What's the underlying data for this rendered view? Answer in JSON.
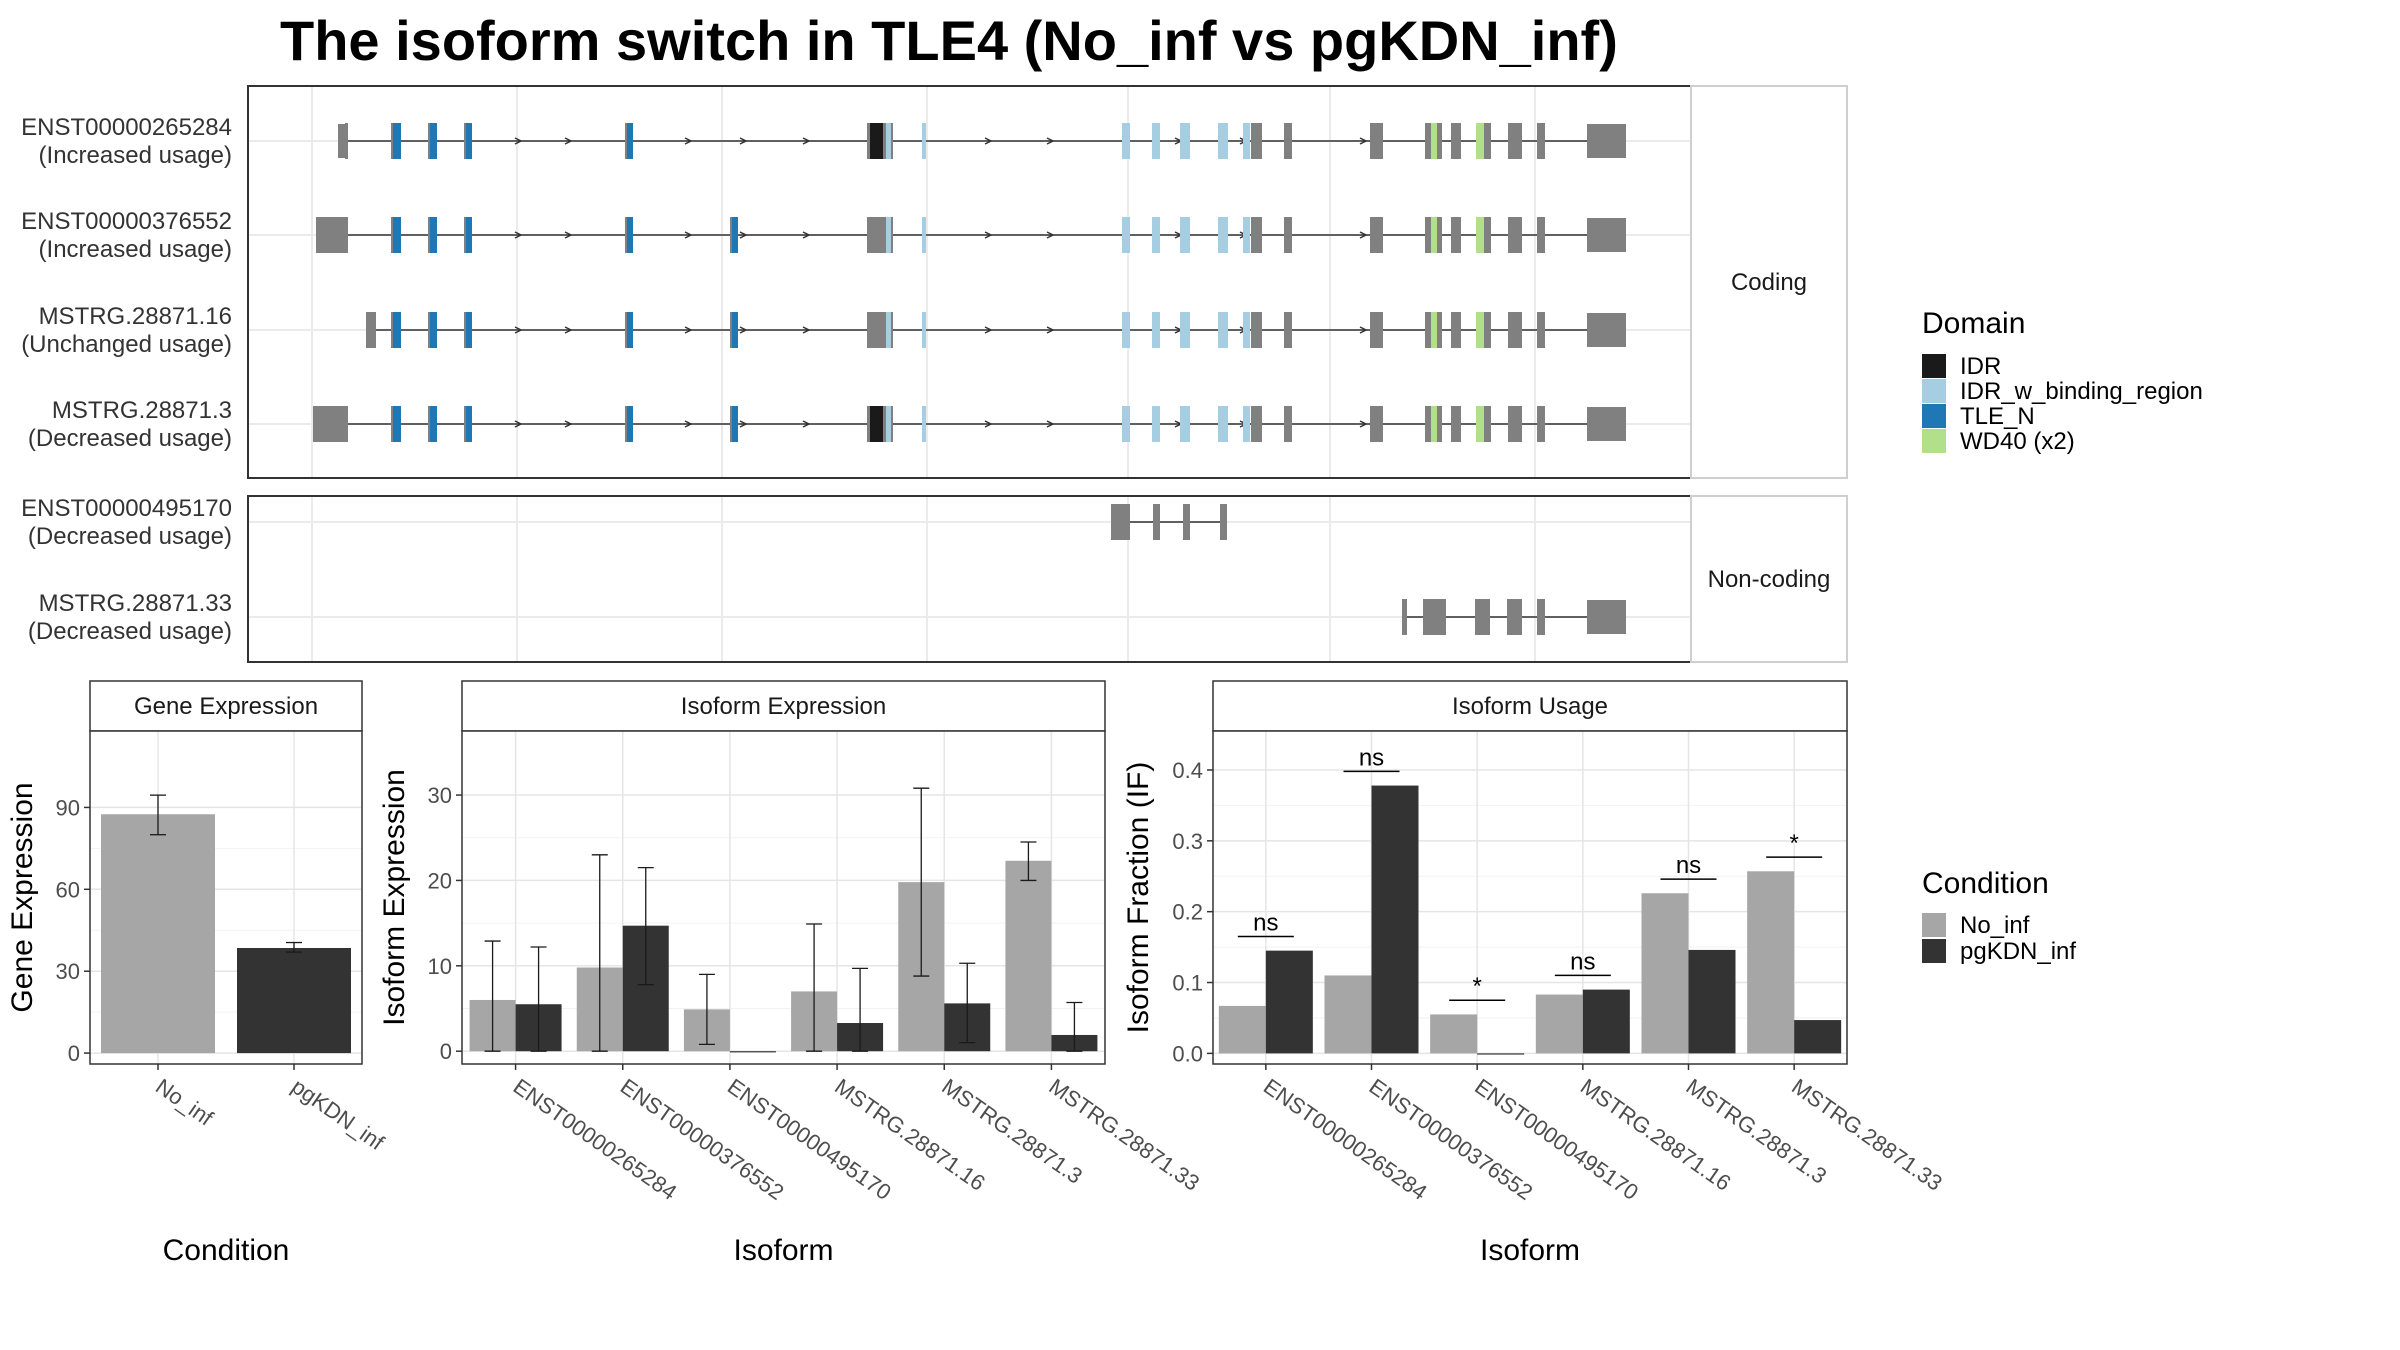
{
  "title": "The isoform switch in TLE4 (No_inf vs pgKDN_inf)",
  "colors": {
    "IDR": "#1a1a1a",
    "IDR_w_binding_region": "#a6cee3",
    "TLE_N": "#1f78b4",
    "WD40": "#b2df8a",
    "exon": "#808080",
    "No_inf": "#a6a6a6",
    "pgKDN_inf": "#333333"
  },
  "structure": {
    "coding_label": "Coding",
    "noncoding_label": "Non-coding",
    "coding": [
      {
        "id": "ENST00000265284",
        "usage": "(Increased usage)"
      },
      {
        "id": "ENST00000376552",
        "usage": "(Increased usage)"
      },
      {
        "id": "MSTRG.28871.16",
        "usage": "(Unchanged usage)"
      },
      {
        "id": "MSTRG.28871.3",
        "usage": "(Decreased usage)"
      }
    ],
    "noncoding": [
      {
        "id": "ENST00000495170",
        "usage": "(Decreased usage)"
      },
      {
        "id": "MSTRG.28871.33",
        "usage": "(Decreased usage)"
      }
    ]
  },
  "legend": {
    "domain_title": "Domain",
    "domains": [
      {
        "label": "IDR",
        "color": "#1a1a1a"
      },
      {
        "label": "IDR_w_binding_region",
        "color": "#a6cee3"
      },
      {
        "label": "TLE_N",
        "color": "#1f78b4"
      },
      {
        "label": "WD40 (x2)",
        "color": "#b2df8a"
      }
    ],
    "condition_title": "Condition",
    "conditions": [
      {
        "label": "No_inf",
        "color": "#a6a6a6"
      },
      {
        "label": "pgKDN_inf",
        "color": "#333333"
      }
    ]
  },
  "chart_data": [
    {
      "type": "bar",
      "title": "Gene Expression",
      "xlabel": "Condition",
      "ylabel": "Gene Expression",
      "categories": [
        "No_inf",
        "pgKDN_inf"
      ],
      "values": [
        87.5,
        38.5
      ],
      "error_low": [
        80.0,
        37.0
      ],
      "error_high": [
        94.5,
        40.5
      ],
      "yticks": [
        0,
        30,
        60,
        90
      ],
      "ylim": [
        -4,
        118
      ]
    },
    {
      "type": "bar",
      "title": "Isoform Expression",
      "xlabel": "Isoform",
      "ylabel": "Isoform Expression",
      "categories": [
        "ENST00000265284",
        "ENST00000376552",
        "ENST00000495170",
        "MSTRG.28871.16",
        "MSTRG.28871.3",
        "MSTRG.28871.33"
      ],
      "series": [
        {
          "name": "No_inf",
          "values": [
            6.0,
            9.8,
            4.9,
            7.0,
            19.8,
            22.3
          ],
          "error_low": [
            0.0,
            0.0,
            0.8,
            0.0,
            8.8,
            20.0
          ],
          "error_high": [
            12.9,
            23.0,
            9.0,
            14.9,
            30.8,
            24.5
          ]
        },
        {
          "name": "pgKDN_inf",
          "values": [
            5.5,
            14.7,
            0.0,
            3.3,
            5.6,
            1.9
          ],
          "error_low": [
            0.0,
            7.8,
            0.0,
            0.0,
            1.0,
            0.0
          ],
          "error_high": [
            12.2,
            21.5,
            0.0,
            9.7,
            10.3,
            5.7
          ]
        }
      ],
      "yticks": [
        0,
        10,
        20,
        30
      ],
      "ylim": [
        -1.5,
        37.5
      ]
    },
    {
      "type": "bar",
      "title": "Isoform Usage",
      "xlabel": "Isoform",
      "ylabel": "Isoform Fraction (IF)",
      "categories": [
        "ENST00000265284",
        "ENST00000376552",
        "ENST00000495170",
        "MSTRG.28871.16",
        "MSTRG.28871.3",
        "MSTRG.28871.33"
      ],
      "series": [
        {
          "name": "No_inf",
          "values": [
            0.067,
            0.11,
            0.055,
            0.083,
            0.226,
            0.257
          ]
        },
        {
          "name": "pgKDN_inf",
          "values": [
            0.145,
            0.378,
            0.0,
            0.09,
            0.146,
            0.047
          ]
        }
      ],
      "significance": [
        "ns",
        "ns",
        "*",
        "ns",
        "ns",
        "*"
      ],
      "yticks": [
        0.0,
        0.1,
        0.2,
        0.3,
        0.4
      ],
      "ylim": [
        -0.015,
        0.455
      ]
    }
  ]
}
